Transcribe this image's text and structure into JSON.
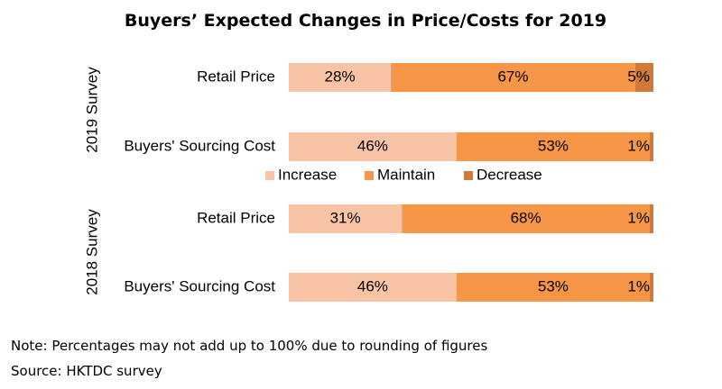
{
  "chart_data": {
    "type": "bar",
    "orientation": "horizontal",
    "stacked": true,
    "normalized": true,
    "title": "Buyers’ Expected Changes in Price/Costs for 2019",
    "xlim": [
      0,
      100
    ],
    "unit": "%",
    "legend": {
      "position": "center",
      "entries": [
        "Increase",
        "Maintain",
        "Decrease"
      ]
    },
    "series": [
      {
        "name": "Increase",
        "color": "#F9C4A5",
        "values": [
          28,
          46,
          31,
          46
        ]
      },
      {
        "name": "Maintain",
        "color": "#F79646",
        "values": [
          67,
          53,
          68,
          53
        ]
      },
      {
        "name": "Decrease",
        "color": "#D07A3A",
        "values": [
          5,
          1,
          1,
          1
        ]
      }
    ],
    "groups": [
      {
        "label": "2019 Survey",
        "categories": [
          "Retail Price",
          "Buyers' Sourcing Cost"
        ]
      },
      {
        "label": "2018 Survey",
        "categories": [
          "Retail Price",
          "Buyers' Sourcing Cost"
        ]
      }
    ],
    "data_labels": [
      [
        "28%",
        "67%",
        "5%"
      ],
      [
        "46%",
        "53%",
        "1%"
      ],
      [
        "31%",
        "68%",
        "1%"
      ],
      [
        "46%",
        "53%",
        "1%"
      ]
    ]
  },
  "footer": {
    "note": "Note: Percentages may not add up to 100% due to rounding of figures",
    "source": "Source: HKTDC survey"
  }
}
